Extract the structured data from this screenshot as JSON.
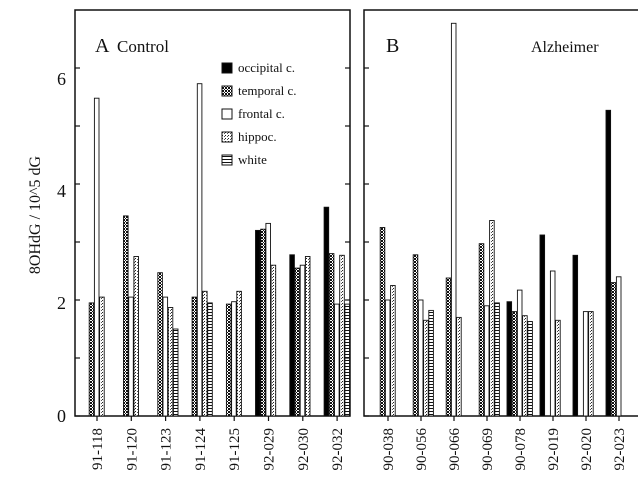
{
  "chart_data": {
    "type": "bar",
    "ylabel": "8OHdG / 10^5 dG",
    "ylim": [
      0,
      7
    ],
    "yticks": [
      "0",
      "2",
      "4",
      "6"
    ],
    "legend": {
      "placement": "top-right of panel A",
      "items": [
        {
          "name": "occipital c.",
          "pattern": "solid-black"
        },
        {
          "name": "temporal c.",
          "pattern": "dark-stipple"
        },
        {
          "name": "frontal c.",
          "pattern": "white"
        },
        {
          "name": "hippoc.",
          "pattern": "light-stipple"
        },
        {
          "name": "white",
          "pattern": "horizontal-lines"
        }
      ]
    },
    "panels": [
      {
        "letter": "A",
        "title": "Control",
        "categories": [
          "91-118",
          "91-120",
          "91-123",
          "91-124",
          "91-125",
          "92-029",
          "92-030",
          "92-032"
        ],
        "series": [
          {
            "name": "occipital c.",
            "values": [
              null,
              null,
              null,
              null,
              null,
              3.2,
              2.78,
              3.6
            ]
          },
          {
            "name": "temporal c.",
            "values": [
              1.95,
              3.45,
              2.47,
              2.05,
              1.93,
              3.22,
              2.55,
              2.8
            ]
          },
          {
            "name": "frontal c.",
            "values": [
              5.48,
              2.05,
              2.05,
              5.73,
              1.97,
              3.32,
              2.6,
              1.93
            ]
          },
          {
            "name": "hippoc.",
            "values": [
              2.05,
              2.75,
              1.87,
              2.15,
              2.15,
              2.6,
              2.75,
              2.77
            ]
          },
          {
            "name": "white",
            "values": [
              null,
              null,
              1.5,
              1.95,
              null,
              null,
              null,
              1.93
            ]
          }
        ]
      },
      {
        "letter": "B",
        "title": "Alzheimer",
        "categories": [
          "90-038",
          "90-056",
          "90-066",
          "90-069",
          "90-078",
          "92-019",
          "92-020",
          "92-023"
        ],
        "series": [
          {
            "name": "occipital c.",
            "values": [
              null,
              null,
              null,
              null,
              1.97,
              3.12,
              2.77,
              5.27
            ]
          },
          {
            "name": "temporal c.",
            "values": [
              3.25,
              2.78,
              2.38,
              2.97,
              1.8,
              null,
              null,
              2.3
            ]
          },
          {
            "name": "frontal c.",
            "values": [
              2.0,
              2.0,
              6.77,
              1.9,
              2.17,
              2.5,
              1.8,
              2.4
            ]
          },
          {
            "name": "hippoc.",
            "values": [
              2.25,
              1.65,
              1.7,
              3.37,
              1.73,
              1.65,
              1.8,
              null
            ]
          },
          {
            "name": "white",
            "values": [
              null,
              1.82,
              null,
              1.95,
              1.63,
              null,
              null,
              null
            ]
          }
        ]
      }
    ]
  }
}
